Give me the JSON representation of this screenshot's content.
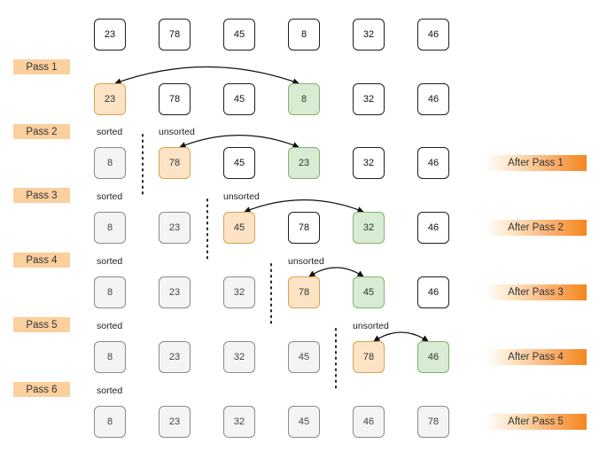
{
  "rows": [
    {
      "cells": [
        {
          "value": "23",
          "state": "normal"
        },
        {
          "value": "78",
          "state": "normal"
        },
        {
          "value": "45",
          "state": "normal"
        },
        {
          "value": "8",
          "state": "normal"
        },
        {
          "value": "32",
          "state": "normal"
        },
        {
          "value": "46",
          "state": "normal"
        }
      ]
    },
    {
      "cells": [
        {
          "value": "23",
          "state": "pivot"
        },
        {
          "value": "78",
          "state": "normal"
        },
        {
          "value": "45",
          "state": "normal"
        },
        {
          "value": "8",
          "state": "swap"
        },
        {
          "value": "32",
          "state": "normal"
        },
        {
          "value": "46",
          "state": "normal"
        }
      ]
    },
    {
      "cells": [
        {
          "value": "8",
          "state": "sorted"
        },
        {
          "value": "78",
          "state": "pivot"
        },
        {
          "value": "45",
          "state": "normal"
        },
        {
          "value": "23",
          "state": "swap"
        },
        {
          "value": "32",
          "state": "normal"
        },
        {
          "value": "46",
          "state": "normal"
        }
      ]
    },
    {
      "cells": [
        {
          "value": "8",
          "state": "sorted"
        },
        {
          "value": "23",
          "state": "sorted"
        },
        {
          "value": "45",
          "state": "pivot"
        },
        {
          "value": "78",
          "state": "normal"
        },
        {
          "value": "32",
          "state": "swap"
        },
        {
          "value": "46",
          "state": "normal"
        }
      ]
    },
    {
      "cells": [
        {
          "value": "8",
          "state": "sorted"
        },
        {
          "value": "23",
          "state": "sorted"
        },
        {
          "value": "32",
          "state": "sorted"
        },
        {
          "value": "78",
          "state": "pivot"
        },
        {
          "value": "45",
          "state": "swap"
        },
        {
          "value": "46",
          "state": "normal"
        }
      ]
    },
    {
      "cells": [
        {
          "value": "8",
          "state": "sorted"
        },
        {
          "value": "23",
          "state": "sorted"
        },
        {
          "value": "32",
          "state": "sorted"
        },
        {
          "value": "45",
          "state": "sorted"
        },
        {
          "value": "78",
          "state": "pivot"
        },
        {
          "value": "46",
          "state": "swap"
        }
      ]
    },
    {
      "cells": [
        {
          "value": "8",
          "state": "sorted"
        },
        {
          "value": "23",
          "state": "sorted"
        },
        {
          "value": "32",
          "state": "sorted"
        },
        {
          "value": "45",
          "state": "sorted"
        },
        {
          "value": "46",
          "state": "sorted"
        },
        {
          "value": "78",
          "state": "sorted"
        }
      ]
    }
  ],
  "passes": [
    "Pass 1",
    "Pass 2",
    "Pass 3",
    "Pass 4",
    "Pass 5",
    "Pass 6"
  ],
  "after_passes": [
    "After Pass 1",
    "After Pass 2",
    "After Pass 3",
    "After Pass 4",
    "After Pass 5"
  ],
  "sorted_label": "sorted",
  "unsorted_label": "unsorted",
  "swaps": [
    {
      "row": 1,
      "from": 0,
      "to": 3
    },
    {
      "row": 2,
      "from": 1,
      "to": 3
    },
    {
      "row": 3,
      "from": 2,
      "to": 4
    },
    {
      "row": 4,
      "from": 3,
      "to": 4
    },
    {
      "row": 5,
      "from": 4,
      "to": 5
    }
  ],
  "colors": {
    "pivot_fill": "#fde3c6",
    "swap_fill": "#d8ebd3",
    "sorted_fill": "#f4f4f4",
    "pass_label_fill": "#fbcf9e",
    "after_label_accent": "#f4871c"
  }
}
